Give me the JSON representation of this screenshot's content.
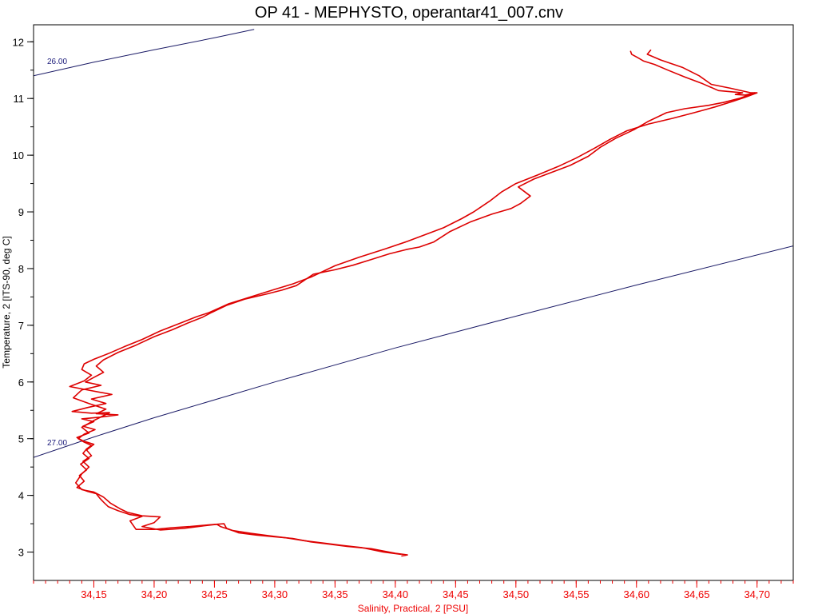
{
  "chart_data": {
    "type": "line",
    "title": "OP 41 - MEPHYSTO, operantar41_007.cnv",
    "xlabel": "Salinity, Practical, 2 [PSU]",
    "ylabel": "Temperature, 2 [ITS-90, deg C]",
    "xlim": [
      34.1,
      34.73
    ],
    "ylim": [
      2.5,
      12.3
    ],
    "x_ticks": [
      "34,15",
      "34,20",
      "34,25",
      "34,30",
      "34,35",
      "34,40",
      "34,45",
      "34,50",
      "34,55",
      "34,60",
      "34,65",
      "34,70"
    ],
    "x_tick_values": [
      34.15,
      34.2,
      34.25,
      34.3,
      34.35,
      34.4,
      34.45,
      34.5,
      34.55,
      34.6,
      34.65,
      34.7
    ],
    "y_ticks": [
      "3",
      "4",
      "5",
      "6",
      "7",
      "8",
      "9",
      "10",
      "11",
      "12"
    ],
    "y_tick_values": [
      3,
      4,
      5,
      6,
      7,
      8,
      9,
      10,
      11,
      12
    ],
    "grid": false,
    "colors": {
      "profile": "#dd0000",
      "isopycnal": "#1a1a66",
      "x_axis": "#ee0000",
      "y_axis": "#000000"
    },
    "isopycnals": [
      {
        "label": "26.00",
        "points": [
          [
            34.1,
            11.4
          ],
          [
            34.15,
            11.64
          ],
          [
            34.2,
            11.86
          ],
          [
            34.25,
            12.07
          ],
          [
            34.283,
            12.22
          ]
        ]
      },
      {
        "label": "27.00",
        "points": [
          [
            34.1,
            4.67
          ],
          [
            34.15,
            5.03
          ],
          [
            34.2,
            5.37
          ],
          [
            34.3,
            6.0
          ],
          [
            34.4,
            6.6
          ],
          [
            34.5,
            7.16
          ],
          [
            34.6,
            7.71
          ],
          [
            34.73,
            8.4
          ]
        ]
      }
    ],
    "series": [
      {
        "points": [
          [
            34.595,
            11.84
          ],
          [
            34.596,
            11.78
          ],
          [
            34.601,
            11.72
          ],
          [
            34.606,
            11.66
          ],
          [
            34.615,
            11.6
          ],
          [
            34.626,
            11.5
          ],
          [
            34.64,
            11.38
          ],
          [
            34.655,
            11.26
          ],
          [
            34.668,
            11.14
          ],
          [
            34.688,
            11.1
          ],
          [
            34.682,
            11.07
          ],
          [
            34.69,
            11.06
          ],
          [
            34.698,
            11.1
          ],
          [
            34.685,
            11.0
          ],
          [
            34.672,
            10.93
          ],
          [
            34.66,
            10.88
          ],
          [
            34.64,
            10.82
          ],
          [
            34.625,
            10.75
          ],
          [
            34.61,
            10.6
          ],
          [
            34.598,
            10.45
          ],
          [
            34.583,
            10.3
          ],
          [
            34.57,
            10.14
          ],
          [
            34.56,
            9.98
          ],
          [
            34.545,
            9.82
          ],
          [
            34.53,
            9.7
          ],
          [
            34.515,
            9.58
          ],
          [
            34.502,
            9.44
          ],
          [
            34.512,
            9.28
          ],
          [
            34.504,
            9.15
          ],
          [
            34.496,
            9.06
          ],
          [
            34.48,
            8.96
          ],
          [
            34.462,
            8.82
          ],
          [
            34.445,
            8.65
          ],
          [
            34.432,
            8.47
          ],
          [
            34.42,
            8.38
          ],
          [
            34.41,
            8.34
          ],
          [
            34.395,
            8.26
          ],
          [
            34.38,
            8.16
          ],
          [
            34.365,
            8.06
          ],
          [
            34.35,
            7.98
          ],
          [
            34.332,
            7.9
          ],
          [
            34.318,
            7.7
          ],
          [
            34.306,
            7.62
          ],
          [
            34.293,
            7.55
          ],
          [
            34.275,
            7.46
          ],
          [
            34.26,
            7.35
          ],
          [
            34.248,
            7.23
          ],
          [
            34.24,
            7.14
          ],
          [
            34.228,
            7.04
          ],
          [
            34.215,
            6.92
          ],
          [
            34.2,
            6.8
          ],
          [
            34.185,
            6.65
          ],
          [
            34.17,
            6.52
          ],
          [
            34.158,
            6.39
          ],
          [
            34.152,
            6.28
          ],
          [
            34.158,
            6.17
          ],
          [
            34.15,
            6.08
          ],
          [
            34.143,
            6.0
          ],
          [
            34.156,
            5.94
          ],
          [
            34.14,
            5.86
          ],
          [
            34.133,
            5.72
          ],
          [
            34.146,
            5.62
          ],
          [
            34.16,
            5.52
          ],
          [
            34.152,
            5.44
          ],
          [
            34.17,
            5.42
          ],
          [
            34.155,
            5.38
          ],
          [
            34.14,
            5.35
          ],
          [
            34.15,
            5.3
          ],
          [
            34.141,
            5.22
          ],
          [
            34.151,
            5.16
          ],
          [
            34.142,
            5.08
          ],
          [
            34.137,
            5.0
          ],
          [
            34.142,
            4.94
          ],
          [
            34.148,
            4.88
          ],
          [
            34.144,
            4.82
          ],
          [
            34.141,
            4.74
          ],
          [
            34.146,
            4.65
          ],
          [
            34.139,
            4.55
          ],
          [
            34.144,
            4.45
          ],
          [
            34.138,
            4.35
          ],
          [
            34.142,
            4.25
          ],
          [
            34.136,
            4.14
          ],
          [
            34.145,
            4.07
          ],
          [
            34.152,
            4.03
          ],
          [
            34.155,
            3.95
          ],
          [
            34.158,
            3.88
          ],
          [
            34.162,
            3.8
          ],
          [
            34.17,
            3.73
          ],
          [
            34.18,
            3.66
          ],
          [
            34.19,
            3.63
          ],
          [
            34.18,
            3.55
          ],
          [
            34.185,
            3.4
          ],
          [
            34.2,
            3.4
          ],
          [
            34.215,
            3.43
          ],
          [
            34.23,
            3.45
          ],
          [
            34.245,
            3.48
          ],
          [
            34.258,
            3.5
          ],
          [
            34.26,
            3.42
          ],
          [
            34.27,
            3.34
          ],
          [
            34.285,
            3.3
          ],
          [
            34.3,
            3.27
          ],
          [
            34.315,
            3.24
          ],
          [
            34.33,
            3.18
          ],
          [
            34.345,
            3.14
          ],
          [
            34.36,
            3.1
          ],
          [
            34.38,
            3.06
          ],
          [
            34.4,
            2.98
          ],
          [
            34.41,
            2.95
          ],
          [
            34.405,
            2.93
          ]
        ]
      },
      {
        "points": [
          [
            34.612,
            11.86
          ],
          [
            34.609,
            11.78
          ],
          [
            34.62,
            11.68
          ],
          [
            34.638,
            11.55
          ],
          [
            34.652,
            11.4
          ],
          [
            34.662,
            11.25
          ],
          [
            34.678,
            11.18
          ],
          [
            34.695,
            11.1
          ],
          [
            34.7,
            11.1
          ],
          [
            34.69,
            11.02
          ],
          [
            34.68,
            10.95
          ],
          [
            34.665,
            10.85
          ],
          [
            34.648,
            10.75
          ],
          [
            34.63,
            10.65
          ],
          [
            34.61,
            10.55
          ],
          [
            34.592,
            10.43
          ],
          [
            34.578,
            10.28
          ],
          [
            34.565,
            10.12
          ],
          [
            34.55,
            9.95
          ],
          [
            34.535,
            9.8
          ],
          [
            34.518,
            9.65
          ],
          [
            34.5,
            9.5
          ],
          [
            34.488,
            9.35
          ],
          [
            34.479,
            9.2
          ],
          [
            34.472,
            9.1
          ],
          [
            34.465,
            9.0
          ],
          [
            34.455,
            8.88
          ],
          [
            34.44,
            8.72
          ],
          [
            34.425,
            8.6
          ],
          [
            34.41,
            8.48
          ],
          [
            34.392,
            8.35
          ],
          [
            34.37,
            8.2
          ],
          [
            34.35,
            8.05
          ],
          [
            34.33,
            7.85
          ],
          [
            34.315,
            7.73
          ],
          [
            34.298,
            7.62
          ],
          [
            34.28,
            7.5
          ],
          [
            34.262,
            7.38
          ],
          [
            34.245,
            7.22
          ],
          [
            34.235,
            7.15
          ],
          [
            34.222,
            7.04
          ],
          [
            34.205,
            6.9
          ],
          [
            34.19,
            6.75
          ],
          [
            34.175,
            6.62
          ],
          [
            34.162,
            6.5
          ],
          [
            34.15,
            6.4
          ],
          [
            34.142,
            6.32
          ],
          [
            34.14,
            6.22
          ],
          [
            34.148,
            6.12
          ],
          [
            34.142,
            6.02
          ],
          [
            34.13,
            5.92
          ],
          [
            34.147,
            5.85
          ],
          [
            34.165,
            5.78
          ],
          [
            34.148,
            5.7
          ],
          [
            34.16,
            5.62
          ],
          [
            34.145,
            5.55
          ],
          [
            34.132,
            5.48
          ],
          [
            34.148,
            5.45
          ],
          [
            34.163,
            5.46
          ],
          [
            34.15,
            5.32
          ],
          [
            34.14,
            5.2
          ],
          [
            34.146,
            5.1
          ],
          [
            34.136,
            5.02
          ],
          [
            34.141,
            4.96
          ],
          [
            34.15,
            4.9
          ],
          [
            34.144,
            4.8
          ],
          [
            34.148,
            4.7
          ],
          [
            34.141,
            4.6
          ],
          [
            34.146,
            4.5
          ],
          [
            34.14,
            4.38
          ],
          [
            34.135,
            4.22
          ],
          [
            34.14,
            4.1
          ],
          [
            34.15,
            4.06
          ],
          [
            34.158,
            3.97
          ],
          [
            34.164,
            3.86
          ],
          [
            34.172,
            3.76
          ],
          [
            34.178,
            3.7
          ],
          [
            34.19,
            3.64
          ],
          [
            34.205,
            3.62
          ],
          [
            34.2,
            3.52
          ],
          [
            34.19,
            3.45
          ],
          [
            34.205,
            3.39
          ],
          [
            34.225,
            3.42
          ],
          [
            34.24,
            3.46
          ],
          [
            34.252,
            3.49
          ],
          [
            34.255,
            3.45
          ],
          [
            34.265,
            3.38
          ],
          [
            34.28,
            3.33
          ],
          [
            34.295,
            3.29
          ],
          [
            34.31,
            3.25
          ],
          [
            34.325,
            3.2
          ],
          [
            34.34,
            3.16
          ],
          [
            34.355,
            3.12
          ],
          [
            34.372,
            3.08
          ],
          [
            34.39,
            3.0
          ],
          [
            34.405,
            2.96
          ]
        ]
      }
    ]
  }
}
